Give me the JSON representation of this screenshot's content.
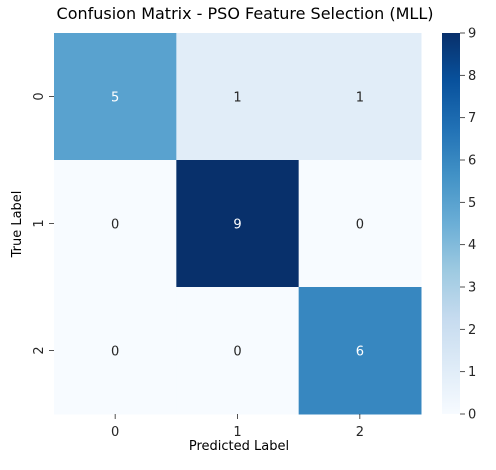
{
  "chart_data": {
    "type": "heatmap",
    "title": "Confusion Matrix - PSO Feature Selection (MLL)",
    "xlabel": "Predicted Label",
    "ylabel": "True Label",
    "x_categories": [
      "0",
      "1",
      "2"
    ],
    "y_categories": [
      "0",
      "1",
      "2"
    ],
    "values": [
      [
        5,
        1,
        1
      ],
      [
        0,
        9,
        0
      ],
      [
        0,
        0,
        6
      ]
    ],
    "annotations": true,
    "colormap": "Blues",
    "colorbar": {
      "min": 0,
      "max": 9,
      "ticks": [
        "0",
        "1",
        "2",
        "3",
        "4",
        "5",
        "6",
        "7",
        "8",
        "9"
      ]
    },
    "grid": false,
    "legend": "none"
  }
}
